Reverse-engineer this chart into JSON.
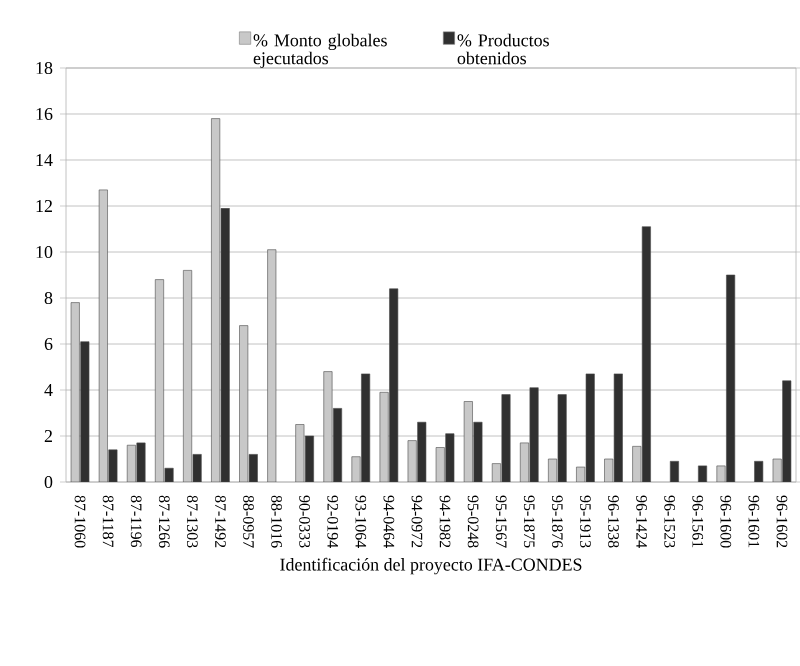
{
  "chart_data": {
    "type": "bar",
    "xlabel": "Identificación del proyecto IFA-CONDES",
    "categories": [
      "87-1060",
      "87-1187",
      "87-1196",
      "87-1266",
      "87-1303",
      "87-1492",
      "88-0957",
      "88-1016",
      "90-0333",
      "92-0194",
      "93-1064",
      "94-0464",
      "94-0972",
      "94-1982",
      "95-0248",
      "95-1567",
      "95-1875",
      "95-1876",
      "95-1913",
      "96-1338",
      "96-1424",
      "96-1523",
      "96-1561",
      "96-1600",
      "96-1601",
      "96-1602"
    ],
    "series": [
      {
        "name": "% Monto globales ejecutados",
        "color": "#c8c8c8",
        "values": [
          7.8,
          12.7,
          1.6,
          8.8,
          9.2,
          15.8,
          6.8,
          10.1,
          2.5,
          4.8,
          1.1,
          3.9,
          1.8,
          1.5,
          3.5,
          0.8,
          1.7,
          1.0,
          0.65,
          1.0,
          1.55,
          null,
          null,
          0.7,
          null,
          1.0
        ]
      },
      {
        "name": "% Productos obtenidos",
        "color": "#303030",
        "values": [
          6.1,
          1.4,
          1.7,
          0.6,
          1.2,
          11.9,
          1.2,
          null,
          2.0,
          3.2,
          4.7,
          8.4,
          2.6,
          2.1,
          2.6,
          3.8,
          4.1,
          3.8,
          4.7,
          4.7,
          11.1,
          0.9,
          0.7,
          9.0,
          0.9,
          4.4
        ]
      }
    ],
    "ylim": [
      0,
      18
    ],
    "yticks": [
      0,
      2,
      4,
      6,
      8,
      10,
      12,
      14,
      16,
      18
    ],
    "grid": "y",
    "legend": "top"
  }
}
